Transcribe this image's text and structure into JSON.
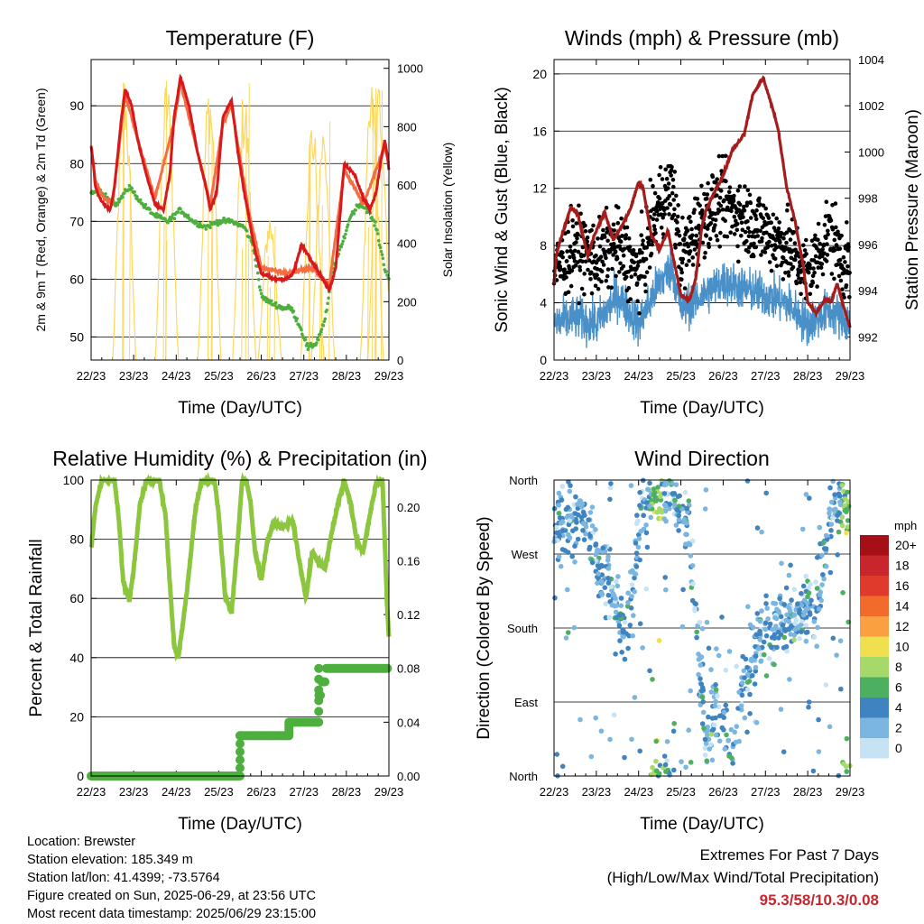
{
  "chart_data": [
    {
      "type": "line",
      "title": "Temperature (F)",
      "xlabel": "Time (Day/UTC)",
      "ylabel": "2m & 9m T (Red, Orange) & 2m Td (Green)",
      "ylabel_right": "Solar Insolation (Yellow)",
      "x_ticks": [
        "22/23",
        "23/23",
        "24/23",
        "25/23",
        "26/23",
        "27/23",
        "28/23",
        "29/23"
      ],
      "ylim": [
        46,
        98
      ],
      "y_ticks": [
        50,
        60,
        70,
        80,
        90
      ],
      "y2lim": [
        0,
        1030
      ],
      "y2_ticks": [
        0,
        200,
        400,
        600,
        800,
        1000
      ],
      "grid": true,
      "series": [
        {
          "name": "2m T",
          "color": "#d7191c",
          "axis": "left",
          "x": [
            0,
            0.05,
            0.1,
            0.2,
            0.3,
            0.45,
            0.55,
            0.7,
            0.8,
            0.85,
            0.95,
            1.1,
            1.3,
            1.5,
            1.7,
            1.85,
            1.95,
            2.1,
            2.3,
            2.5,
            2.7,
            2.8,
            2.95,
            3.1,
            3.3,
            3.45,
            3.6,
            3.7,
            3.85,
            4.0,
            4.3,
            4.6,
            4.75,
            4.95,
            5.2,
            5.45,
            5.6,
            5.75,
            5.85,
            5.95,
            6.2,
            6.4,
            6.55,
            6.7,
            6.8,
            6.9,
            6.95,
            7.0
          ],
          "values": [
            83,
            80,
            76,
            74,
            73,
            72,
            76,
            87,
            93,
            92,
            90,
            84,
            78,
            73,
            72,
            78,
            88,
            95,
            90,
            82,
            76,
            72,
            75,
            88,
            91,
            82,
            75,
            71,
            65,
            61,
            60,
            60,
            61,
            66,
            63,
            60,
            58,
            62,
            71,
            80,
            78,
            74,
            72,
            75,
            80,
            84,
            82,
            79
          ]
        },
        {
          "name": "9m T",
          "color": "#f46d43",
          "axis": "left",
          "x": [
            0,
            0.1,
            0.3,
            0.5,
            0.8,
            1.1,
            1.5,
            1.95,
            2.1,
            2.5,
            2.8,
            3.1,
            3.3,
            3.7,
            4.0,
            4.6,
            5.2,
            5.6,
            5.95,
            6.4,
            6.9,
            7.0
          ],
          "values": [
            83,
            77,
            74,
            73,
            92,
            84,
            74,
            87,
            94,
            82,
            73,
            87,
            90,
            72,
            62,
            61,
            62,
            59,
            79,
            73,
            83,
            80
          ]
        },
        {
          "name": "2m Td",
          "color": "#4daf3d",
          "axis": "left",
          "x": [
            0,
            0.2,
            0.4,
            0.6,
            0.9,
            1.2,
            1.5,
            1.8,
            2.1,
            2.4,
            2.7,
            3.0,
            3.3,
            3.6,
            3.8,
            3.9,
            4.0,
            4.2,
            4.5,
            4.7,
            4.9,
            5.1,
            5.3,
            5.5,
            5.7,
            5.9,
            6.1,
            6.3,
            6.5,
            6.7,
            6.9,
            7.0
          ],
          "values": [
            75,
            75,
            74,
            73,
            76,
            73,
            71,
            70,
            72,
            70,
            69,
            70,
            70,
            69,
            66,
            62,
            57,
            56,
            55,
            55,
            52,
            48,
            49,
            53,
            62,
            66,
            71,
            73,
            72,
            69,
            62,
            60
          ]
        },
        {
          "name": "Solar Insolation",
          "color": "#fdd85d",
          "axis": "right",
          "peaks_x": [
            0.78,
            1.78,
            2.78,
            3.6,
            4.2,
            5.2,
            5.45,
            6.6,
            6.78
          ],
          "peaks_values": [
            1000,
            990,
            980,
            950,
            520,
            860,
            830,
            960,
            980
          ],
          "width_days": 0.55
        }
      ]
    },
    {
      "type": "scatter",
      "title": "Winds (mph) & Pressure (mb)",
      "xlabel": "Time (Day/UTC)",
      "ylabel": "Sonic Wind & Gust (Blue, Black)",
      "ylabel_right": "Station Pressure (Maroon)",
      "x_ticks": [
        "22/23",
        "23/23",
        "24/23",
        "25/23",
        "26/23",
        "27/23",
        "28/23",
        "29/23"
      ],
      "ylim": [
        0,
        21
      ],
      "y_ticks": [
        0,
        4,
        8,
        12,
        16,
        20
      ],
      "y2lim": [
        991.0,
        1004.0
      ],
      "y2_ticks": [
        992,
        994,
        996,
        998,
        1000,
        1002,
        1004
      ],
      "grid": true,
      "series": [
        {
          "name": "Sonic Wind",
          "color": "#4a90c8",
          "axis": "left",
          "x": [
            0,
            0.5,
            1.0,
            1.5,
            2.0,
            2.5,
            2.8,
            3.0,
            3.5,
            4.0,
            4.5,
            5.0,
            5.5,
            6.0,
            6.5,
            7.0
          ],
          "values": [
            2.5,
            3.0,
            2.5,
            4.5,
            2.5,
            5.5,
            6.5,
            3.5,
            4.5,
            5.5,
            5.0,
            4.5,
            4.0,
            2.5,
            3.5,
            2.5
          ]
        },
        {
          "name": "Gust",
          "color": "#000000",
          "axis": "left",
          "x": [
            0,
            0.5,
            1.0,
            1.5,
            2.0,
            2.5,
            2.8,
            3.0,
            3.5,
            4.0,
            4.5,
            5.0,
            5.5,
            6.0,
            6.5,
            7.0
          ],
          "values": [
            6,
            8,
            7,
            8,
            6,
            11,
            12,
            7,
            10,
            11,
            10,
            9,
            8,
            6,
            9,
            6
          ]
        },
        {
          "name": "Station Pressure",
          "color": "#a51c1c",
          "axis": "right",
          "x": [
            0,
            0.05,
            0.15,
            0.4,
            0.55,
            0.8,
            0.95,
            1.2,
            1.4,
            1.6,
            1.8,
            2.0,
            2.1,
            2.3,
            2.5,
            2.7,
            2.8,
            3.0,
            3.2,
            3.35,
            3.5,
            3.6,
            3.8,
            4.0,
            4.2,
            4.5,
            4.7,
            4.95,
            5.15,
            5.3,
            5.5,
            5.7,
            5.9,
            6.0,
            6.2,
            6.4,
            6.55,
            6.7,
            6.8,
            6.9,
            7.0
          ],
          "values": [
            994.3,
            995.5,
            996.2,
            997.6,
            997.4,
            995.5,
            996.4,
            997.4,
            996.2,
            996.8,
            997.5,
            998.7,
            998.5,
            996.4,
            995.8,
            996.6,
            995.6,
            993.8,
            993.6,
            994.5,
            996.8,
            997.5,
            998.3,
            999.0,
            1000.0,
            1000.8,
            1002.5,
            1003.2,
            1002.0,
            1001.0,
            998.5,
            997.0,
            995.0,
            993.5,
            993.0,
            993.6,
            993.5,
            994.3,
            993.6,
            993.0,
            992.4
          ]
        }
      ]
    },
    {
      "type": "line",
      "title": "Relative Humidity (%) & Precipitation (in)",
      "xlabel": "Time (Day/UTC)",
      "ylabel": "Percent & Total Rainfall",
      "x_ticks": [
        "22/23",
        "23/23",
        "24/23",
        "25/23",
        "26/23",
        "27/23",
        "28/23",
        "29/23"
      ],
      "ylim": [
        0,
        100
      ],
      "y_ticks": [
        0,
        20,
        40,
        60,
        80,
        100
      ],
      "y2lim": [
        0.0,
        0.22
      ],
      "y2_ticks": [
        "0.00",
        "0.04",
        "0.08",
        "0.12",
        "0.16",
        "0.20"
      ],
      "grid": true,
      "series": [
        {
          "name": "Relative Humidity",
          "color": "#8cc63f",
          "axis": "left",
          "x": [
            0,
            0.1,
            0.25,
            0.4,
            0.55,
            0.65,
            0.75,
            0.9,
            1.0,
            1.15,
            1.3,
            1.45,
            1.6,
            1.75,
            1.85,
            1.95,
            2.05,
            2.25,
            2.45,
            2.6,
            2.75,
            2.9,
            3.0,
            3.15,
            3.3,
            3.45,
            3.55,
            3.65,
            3.75,
            3.85,
            4.0,
            4.15,
            4.3,
            4.45,
            4.6,
            4.75,
            4.9,
            5.05,
            5.2,
            5.35,
            5.5,
            5.65,
            5.8,
            5.95,
            6.1,
            6.25,
            6.4,
            6.55,
            6.7,
            6.85,
            6.95,
            7.0
          ],
          "values": [
            77,
            91,
            100,
            100,
            100,
            87,
            66,
            59,
            70,
            92,
            100,
            100,
            100,
            88,
            65,
            44,
            40,
            62,
            90,
            100,
            100,
            100,
            88,
            61,
            55,
            80,
            100,
            100,
            92,
            76,
            66,
            80,
            86,
            84,
            85,
            86,
            72,
            60,
            76,
            72,
            70,
            82,
            92,
            100,
            92,
            79,
            76,
            88,
            99,
            100,
            60,
            47
          ]
        },
        {
          "name": "Total Precipitation",
          "color": "#4daf3d",
          "axis": "right",
          "x": [
            0,
            1,
            2,
            3,
            3.45,
            3.5,
            4.0,
            4.6,
            4.65,
            5.0,
            5.3,
            5.35,
            5.4,
            5.5,
            5.6,
            6.0,
            6.5,
            7.0
          ],
          "values": [
            0.0,
            0.0,
            0.0,
            0.0,
            0.0,
            0.03,
            0.03,
            0.03,
            0.04,
            0.04,
            0.04,
            0.06,
            0.07,
            0.08,
            0.08,
            0.08,
            0.08,
            0.08
          ]
        }
      ]
    },
    {
      "type": "scatter",
      "title": "Wind Direction",
      "xlabel": "Time (Day/UTC)",
      "ylabel": "Direction (Colored By Speed)",
      "x_ticks": [
        "22/23",
        "23/23",
        "24/23",
        "25/23",
        "26/23",
        "27/23",
        "28/23",
        "29/23"
      ],
      "y_ticks": [
        "North",
        "West",
        "South",
        "East",
        "North"
      ],
      "ylim": [
        0,
        360
      ],
      "colorbar": {
        "title": "mph",
        "labels": [
          "20+",
          "18",
          "16",
          "14",
          "12",
          "10",
          "8",
          "6",
          "4",
          "2",
          "0"
        ],
        "colors": [
          "#a50f15",
          "#c8262c",
          "#e03a2c",
          "#f26b2b",
          "#fba040",
          "#f0e050",
          "#a6d96a",
          "#4daf60",
          "#3f83c0",
          "#7ab6e0",
          "#c6e3f5"
        ]
      },
      "series": [
        {
          "name": "Direction (deg)",
          "x": [
            0.2,
            0.6,
            1.2,
            1.7,
            2.1,
            2.5,
            2.8,
            3.2,
            3.6,
            3.8,
            4.0,
            4.2,
            4.4,
            4.6,
            4.8,
            5.0,
            5.2,
            5.5,
            5.8,
            6.0,
            6.2,
            6.6,
            6.85
          ],
          "values": [
            310,
            320,
            240,
            180,
            330,
            340,
            350,
            300,
            20,
            80,
            60,
            30,
            90,
            130,
            170,
            180,
            180,
            185,
            190,
            200,
            200,
            330,
            340
          ]
        }
      ]
    }
  ],
  "info": {
    "location": "Location: Brewster",
    "elevation": "Station elevation: 185.349 m",
    "latlon": "Station lat/lon: 41.4399; -73.5764",
    "created": "Figure created on Sun, 2025-06-29, at 23:56 UTC",
    "latest": "Most recent data timestamp: 2025/06/29 23:15:00"
  },
  "extremes": {
    "title": "Extremes For Past 7 Days",
    "subtitle": "(High/Low/Max Wind/Total Precipitation)",
    "values": "95.3/58/10.3/0.08"
  }
}
